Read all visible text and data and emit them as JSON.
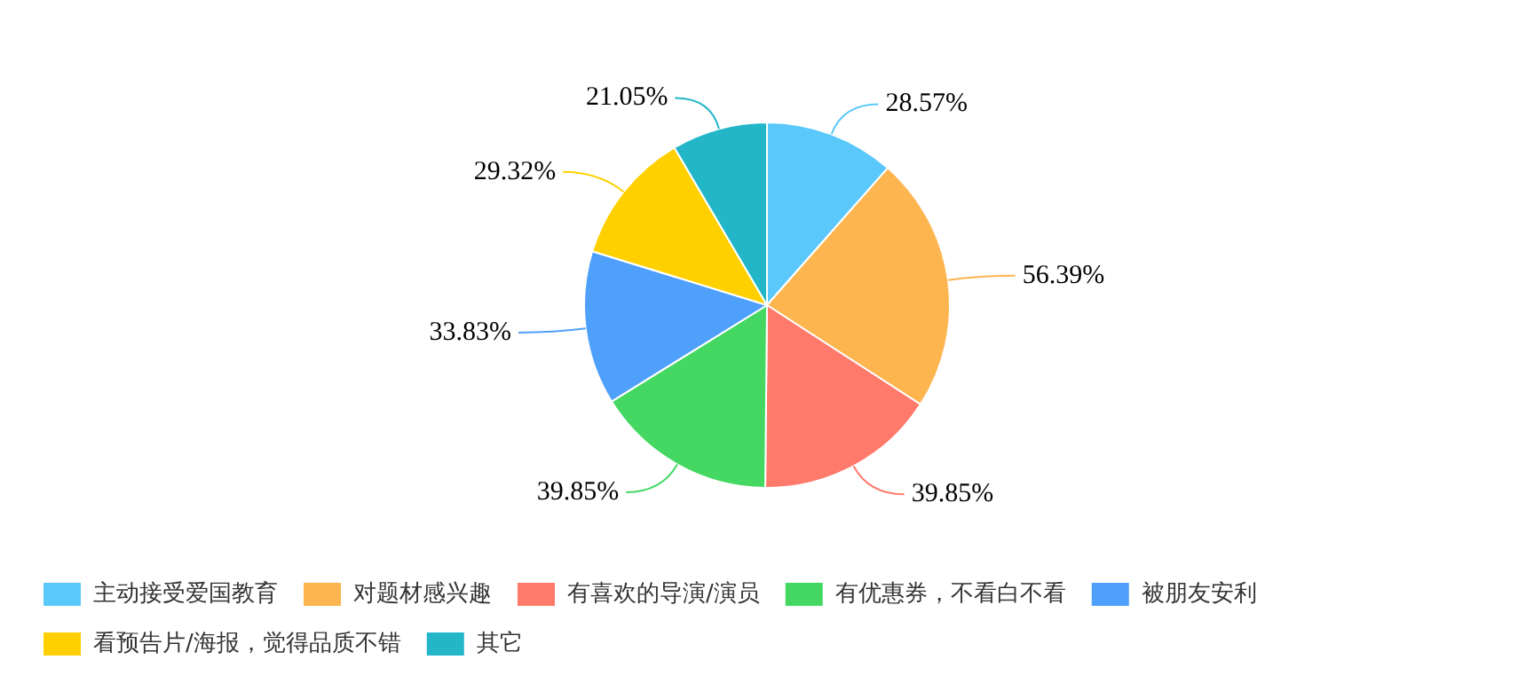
{
  "chart_data": {
    "type": "pie",
    "categories": [
      "主动接受爱国教育",
      "对题材感兴趣",
      "有喜欢的导演/演员",
      "有优惠券，不看白不看",
      "被朋友安利",
      "看预告片/海报，觉得品质不错",
      "其它"
    ],
    "values": [
      28.57,
      56.39,
      39.85,
      39.85,
      33.83,
      29.32,
      21.05
    ],
    "value_labels": [
      "28.57%",
      "56.39%",
      "39.85%",
      "39.85%",
      "33.83%",
      "29.32%",
      "21.05%"
    ],
    "colors": [
      "#5bc8fb",
      "#fdb54f",
      "#ff7a6b",
      "#44d862",
      "#4fa0fb",
      "#ffd000",
      "#22b6c8"
    ],
    "legend": "bottom"
  }
}
